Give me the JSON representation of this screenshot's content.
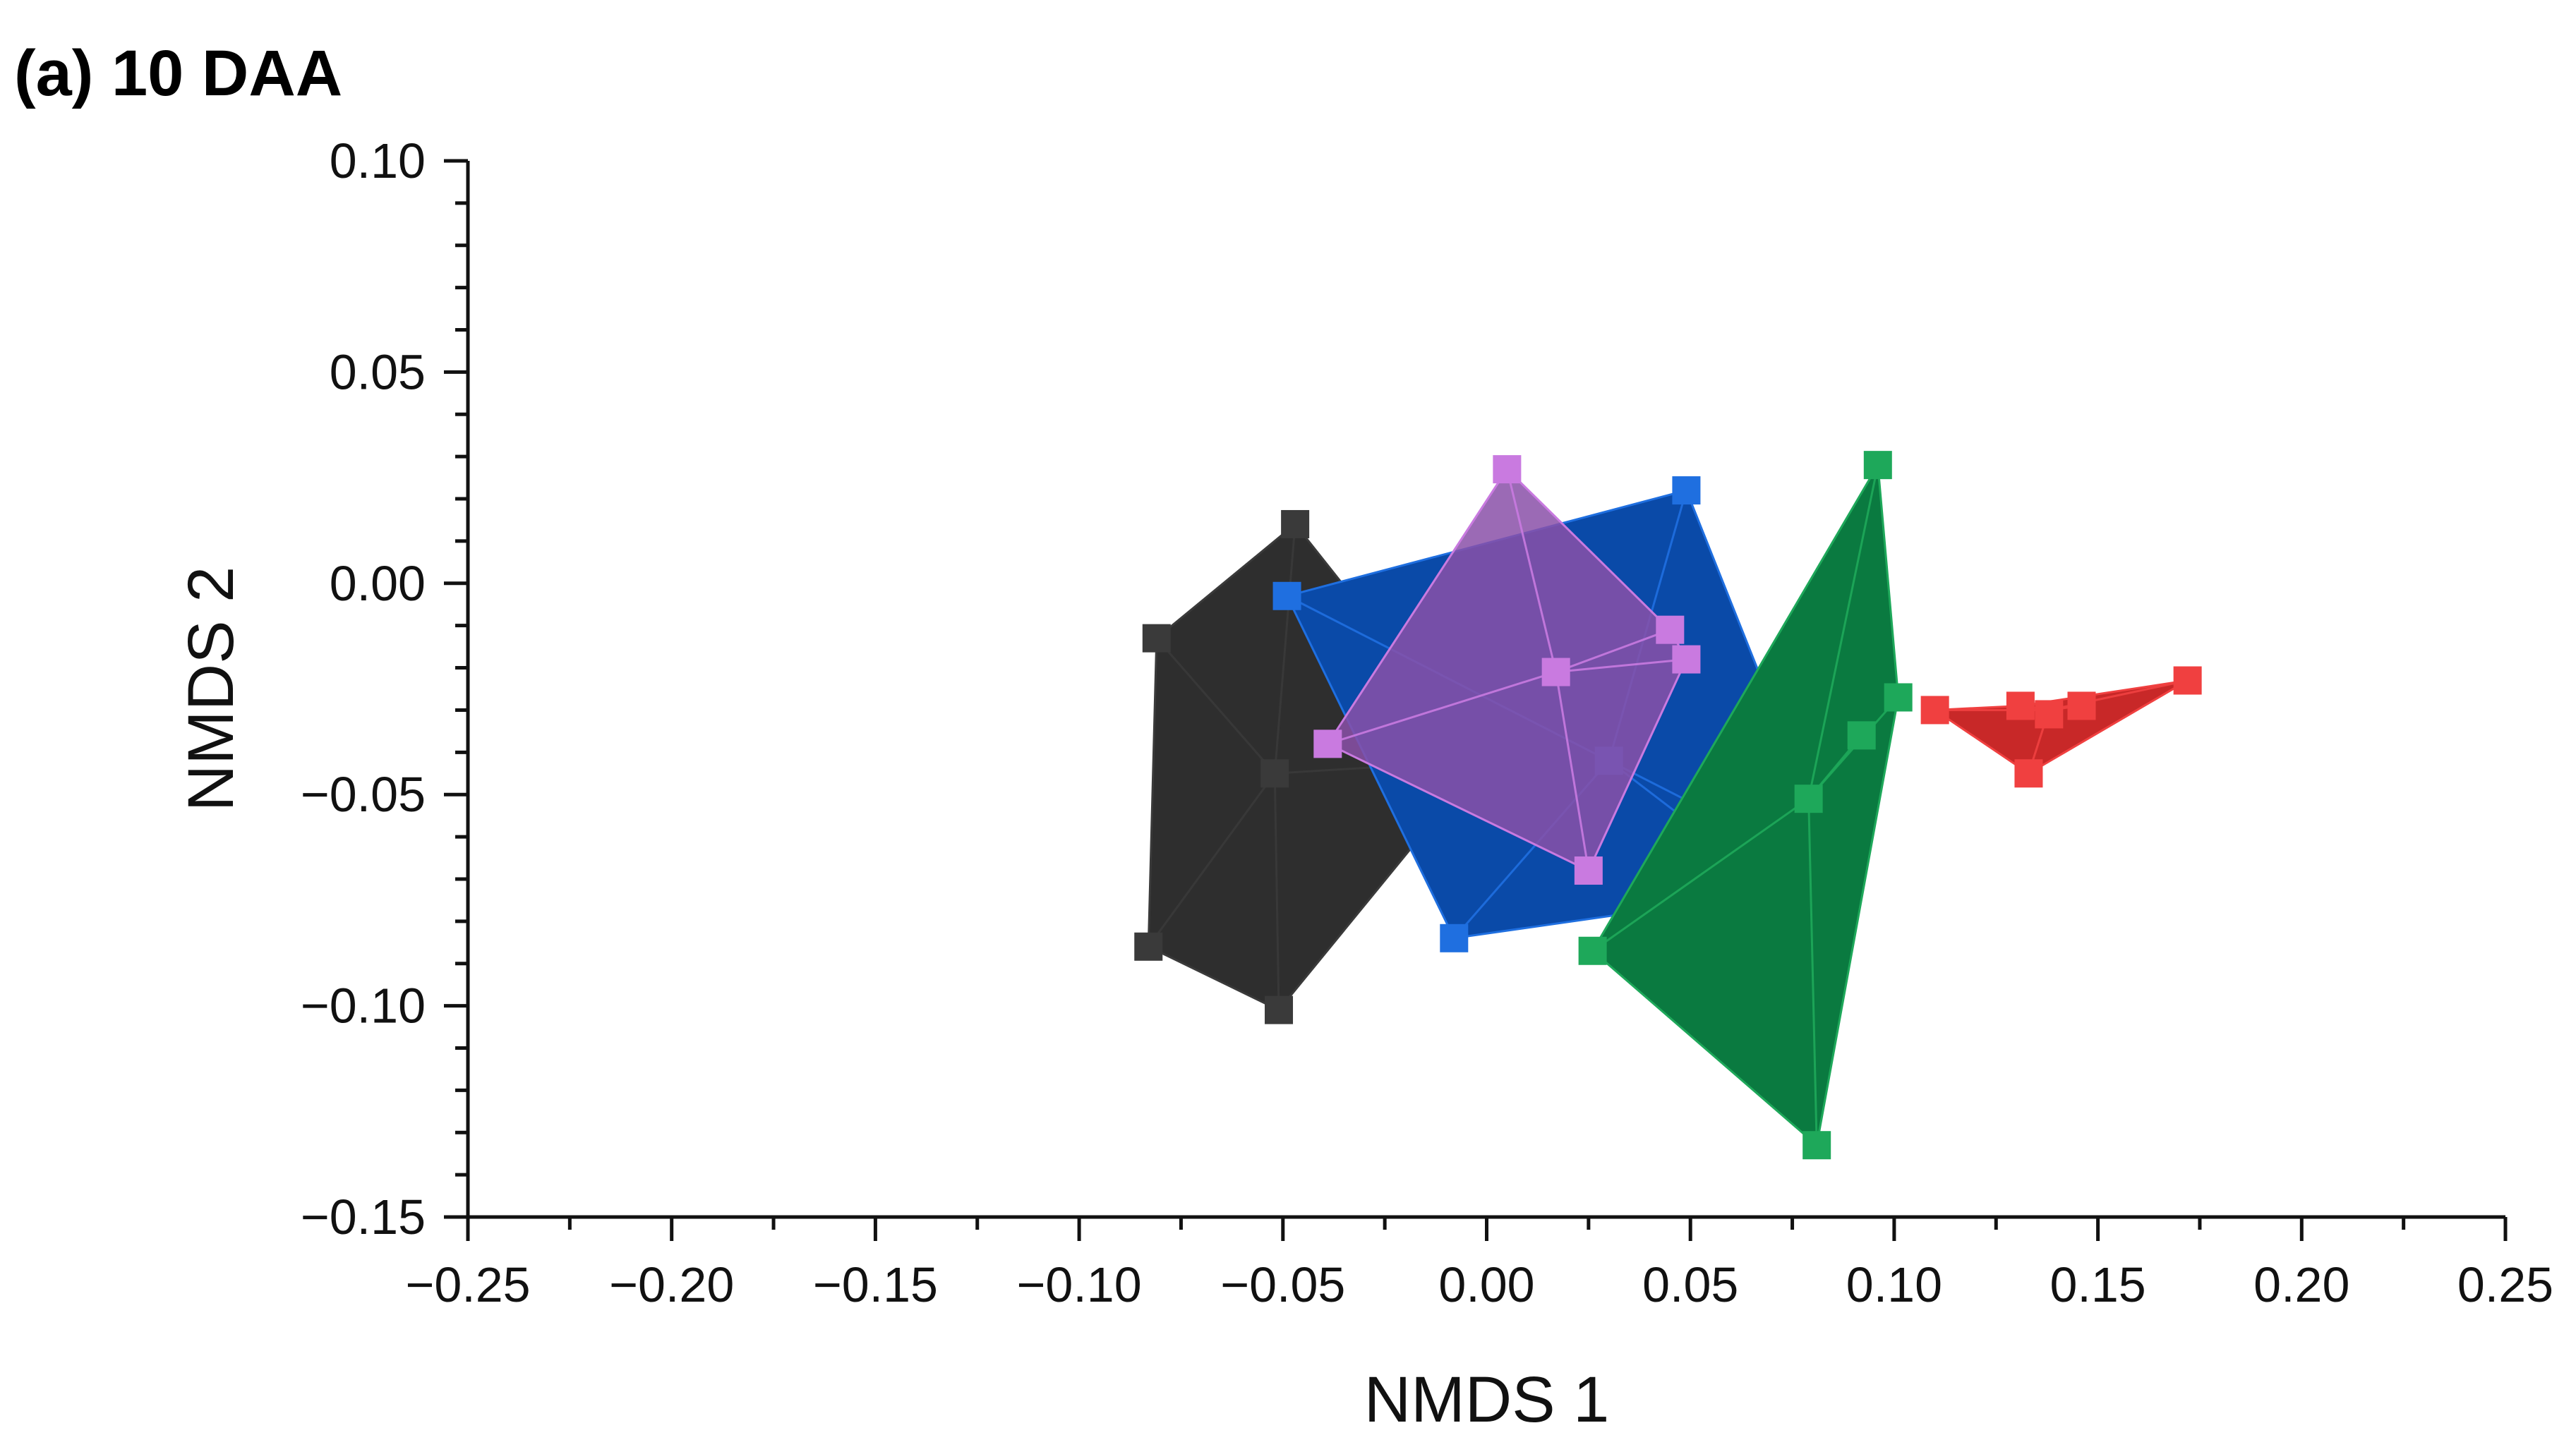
{
  "chart_data": {
    "type": "scatter",
    "title": "(a) 10 DAA",
    "xlabel": "NMDS 1",
    "ylabel": "NMDS 2",
    "xlim": [
      -0.25,
      0.25
    ],
    "ylim": [
      -0.15,
      0.1
    ],
    "xticks": [
      "−0.25",
      "−0.20",
      "−0.15",
      "−0.10",
      "−0.05",
      "0.00",
      "0.05",
      "0.10",
      "0.15",
      "0.20",
      "0.25"
    ],
    "yticks": [
      "0.10",
      "0.05",
      "0.00",
      "−0.05",
      "−0.10",
      "−0.15"
    ],
    "xtick_values": [
      -0.25,
      -0.2,
      -0.15,
      -0.1,
      -0.05,
      0.0,
      0.05,
      0.1,
      0.15,
      0.2,
      0.25
    ],
    "ytick_values": [
      0.1,
      0.05,
      0.0,
      -0.05,
      -0.1,
      -0.15
    ],
    "grid": false,
    "legend": "none",
    "series": [
      {
        "color": "#3a3a3a",
        "fill": "#2e2e2e",
        "centroid": [
          -0.052,
          -0.045
        ],
        "points": [
          [
            -0.047,
            0.014
          ],
          [
            -0.081,
            -0.013
          ],
          [
            -0.052,
            -0.045
          ],
          [
            -0.083,
            -0.086
          ],
          [
            -0.051,
            -0.101
          ],
          [
            -0.001,
            -0.042
          ]
        ],
        "hull": [
          [
            -0.047,
            0.014
          ],
          [
            -0.081,
            -0.013
          ],
          [
            -0.083,
            -0.086
          ],
          [
            -0.051,
            -0.101
          ],
          [
            -0.001,
            -0.042
          ]
        ]
      },
      {
        "color": "#1f6fe0",
        "fill": "#0a4aa8",
        "centroid": [
          0.03,
          -0.042
        ],
        "points": [
          [
            -0.049,
            -0.003
          ],
          [
            0.049,
            0.022
          ],
          [
            0.03,
            -0.042
          ],
          [
            -0.008,
            -0.084
          ],
          [
            0.072,
            -0.073
          ],
          [
            0.087,
            -0.07
          ]
        ],
        "hull": [
          [
            -0.049,
            -0.003
          ],
          [
            0.049,
            0.022
          ],
          [
            0.087,
            -0.07
          ],
          [
            0.072,
            -0.073
          ],
          [
            -0.008,
            -0.084
          ]
        ]
      },
      {
        "color": "#c97ae0",
        "fill": "#8a50a8",
        "centroid": [
          0.017,
          -0.021
        ],
        "points": [
          [
            0.005,
            0.027
          ],
          [
            0.017,
            -0.021
          ],
          [
            -0.039,
            -0.038
          ],
          [
            0.045,
            -0.011
          ],
          [
            0.049,
            -0.018
          ],
          [
            0.025,
            -0.068
          ]
        ],
        "hull": [
          [
            0.005,
            0.027
          ],
          [
            0.045,
            -0.011
          ],
          [
            0.049,
            -0.018
          ],
          [
            0.025,
            -0.068
          ],
          [
            -0.039,
            -0.038
          ]
        ]
      },
      {
        "color": "#1ea85a",
        "fill": "#0a7a40",
        "centroid": [
          0.079,
          -0.051
        ],
        "points": [
          [
            0.096,
            0.028
          ],
          [
            0.101,
            -0.027
          ],
          [
            0.092,
            -0.036
          ],
          [
            0.079,
            -0.051
          ],
          [
            0.026,
            -0.087
          ],
          [
            0.081,
            -0.133
          ]
        ],
        "hull": [
          [
            0.096,
            0.028
          ],
          [
            0.101,
            -0.027
          ],
          [
            0.081,
            -0.133
          ],
          [
            0.026,
            -0.087
          ]
        ]
      },
      {
        "color": "#f04040",
        "fill": "#c82828",
        "centroid": [
          0.138,
          -0.03
        ],
        "points": [
          [
            0.11,
            -0.03
          ],
          [
            0.131,
            -0.029
          ],
          [
            0.138,
            -0.031
          ],
          [
            0.146,
            -0.029
          ],
          [
            0.172,
            -0.023
          ],
          [
            0.133,
            -0.045
          ]
        ],
        "hull": [
          [
            0.11,
            -0.03
          ],
          [
            0.131,
            -0.029
          ],
          [
            0.172,
            -0.023
          ],
          [
            0.133,
            -0.045
          ]
        ]
      }
    ]
  }
}
